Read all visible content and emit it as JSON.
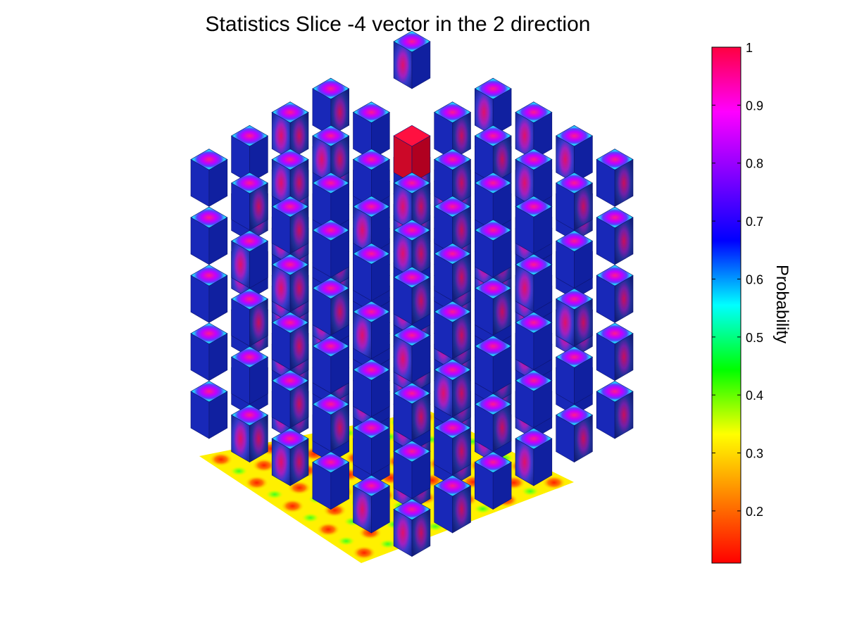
{
  "chart_data": {
    "type": "heatmap",
    "plot": "3d-slice-cubes",
    "title": "Statistics Slice -4 vector in the 2 direction",
    "colorbar": {
      "label": "Probability",
      "range": [
        0.11,
        1.0
      ],
      "ticks": [
        0.2,
        0.3,
        0.4,
        0.5,
        0.6,
        0.7,
        0.8,
        0.9,
        1
      ],
      "tick_labels": [
        "0.2",
        "0.3",
        "0.4",
        "0.5",
        "0.6",
        "0.7",
        "0.8",
        "0.9",
        "1"
      ],
      "colormap": [
        "#ff0000",
        "#ff8000",
        "#ffff00",
        "#00ff00",
        "#00ffff",
        "#0000ff",
        "#8000ff",
        "#ff00ff",
        "#ff0040"
      ]
    },
    "volume": {
      "grid": [
        6,
        6,
        5
      ],
      "cube_face_range": [
        0.65,
        0.95
      ],
      "center_cube_value": 1.0,
      "floor_projection_range": [
        0.11,
        0.5
      ]
    }
  }
}
